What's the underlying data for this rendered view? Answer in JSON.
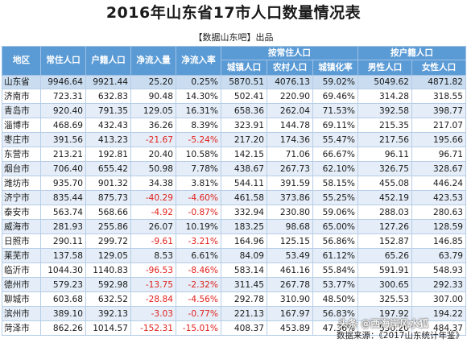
{
  "title": "2016年山东省17市人口数量情况表",
  "subtitle": "【数据山东吧】出品",
  "headers": {
    "region": "地区",
    "resident": "常住人口",
    "household": "户籍人口",
    "net_inflow": "净流入量",
    "net_inflow_rate": "净流入率",
    "group_resident": "按常住人口",
    "urban": "城镇人口",
    "rural": "农村人口",
    "urbanization": "城镇化率",
    "group_household": "按户籍人口",
    "male": "男性人口",
    "female": "女性人口"
  },
  "province_row": {
    "name": "山东省",
    "resident": "9946.64",
    "household": "9921.44",
    "net_inflow": "25.20",
    "net_inflow_rate": "0.25%",
    "urban": "5870.51",
    "rural": "4076.13",
    "urbanization": "59.02%",
    "male": "5049.62",
    "female": "4871.82"
  },
  "rows": [
    {
      "name": "济南市",
      "resident": "723.31",
      "household": "632.83",
      "net_inflow": "90.48",
      "net_inflow_rate": "14.30%",
      "urban": "502.41",
      "rural": "220.90",
      "urbanization": "69.46%",
      "male": "314.28",
      "female": "318.55"
    },
    {
      "name": "青岛市",
      "resident": "920.40",
      "household": "791.35",
      "net_inflow": "129.05",
      "net_inflow_rate": "16.31%",
      "urban": "658.36",
      "rural": "262.04",
      "urbanization": "71.53%",
      "male": "392.58",
      "female": "398.77"
    },
    {
      "name": "淄博市",
      "resident": "468.69",
      "household": "432.43",
      "net_inflow": "36.26",
      "net_inflow_rate": "8.39%",
      "urban": "323.91",
      "rural": "144.78",
      "urbanization": "69.11%",
      "male": "215.35",
      "female": "217.07"
    },
    {
      "name": "枣庄市",
      "resident": "391.56",
      "household": "413.23",
      "net_inflow": "-21.67",
      "net_inflow_rate": "-5.24%",
      "urban": "217.20",
      "rural": "174.36",
      "urbanization": "55.47%",
      "male": "217.56",
      "female": "195.66"
    },
    {
      "name": "东营市",
      "resident": "213.21",
      "household": "192.81",
      "net_inflow": "20.40",
      "net_inflow_rate": "10.58%",
      "urban": "142.15",
      "rural": "71.06",
      "urbanization": "66.67%",
      "male": "96.11",
      "female": "96.71"
    },
    {
      "name": "烟台市",
      "resident": "706.40",
      "household": "655.42",
      "net_inflow": "50.98",
      "net_inflow_rate": "7.78%",
      "urban": "438.67",
      "rural": "267.73",
      "urbanization": "62.10%",
      "male": "326.75",
      "female": "328.67"
    },
    {
      "name": "潍坊市",
      "resident": "935.70",
      "household": "901.32",
      "net_inflow": "34.38",
      "net_inflow_rate": "3.81%",
      "urban": "544.11",
      "rural": "391.59",
      "urbanization": "58.15%",
      "male": "455.08",
      "female": "446.24"
    },
    {
      "name": "济宁市",
      "resident": "835.44",
      "household": "875.73",
      "net_inflow": "-40.29",
      "net_inflow_rate": "-4.60%",
      "urban": "461.58",
      "rural": "373.86",
      "urbanization": "55.25%",
      "male": "452.19",
      "female": "423.53"
    },
    {
      "name": "泰安市",
      "resident": "563.74",
      "household": "568.66",
      "net_inflow": "-4.92",
      "net_inflow_rate": "-0.87%",
      "urban": "332.94",
      "rural": "230.80",
      "urbanization": "59.06%",
      "male": "288.03",
      "female": "280.63"
    },
    {
      "name": "威海市",
      "resident": "281.93",
      "household": "255.86",
      "net_inflow": "26.07",
      "net_inflow_rate": "10.19%",
      "urban": "183.25",
      "rural": "98.68",
      "urbanization": "65.00%",
      "male": "127.26",
      "female": "128.59"
    },
    {
      "name": "日照市",
      "resident": "290.11",
      "household": "299.72",
      "net_inflow": "-9.61",
      "net_inflow_rate": "-3.21%",
      "urban": "164.96",
      "rural": "125.15",
      "urbanization": "56.86%",
      "male": "152.87",
      "female": "146.85"
    },
    {
      "name": "莱芜市",
      "resident": "137.58",
      "household": "129.05",
      "net_inflow": "8.53",
      "net_inflow_rate": "6.61%",
      "urban": "84.09",
      "rural": "53.49",
      "urbanization": "61.12%",
      "male": "65.26",
      "female": "63.79"
    },
    {
      "name": "临沂市",
      "resident": "1044.30",
      "household": "1140.83",
      "net_inflow": "-96.53",
      "net_inflow_rate": "-8.46%",
      "urban": "583.14",
      "rural": "461.16",
      "urbanization": "55.84%",
      "male": "591.91",
      "female": "548.93"
    },
    {
      "name": "德州市",
      "resident": "579.23",
      "household": "592.98",
      "net_inflow": "-13.75",
      "net_inflow_rate": "-2.32%",
      "urban": "311.45",
      "rural": "267.78",
      "urbanization": "53.77%",
      "male": "300.65",
      "female": "292.33"
    },
    {
      "name": "聊城市",
      "resident": "603.68",
      "household": "632.52",
      "net_inflow": "-28.84",
      "net_inflow_rate": "-4.56%",
      "urban": "292.78",
      "rural": "310.90",
      "urbanization": "48.50%",
      "male": "325.53",
      "female": "307.00"
    },
    {
      "name": "滨州市",
      "resident": "389.10",
      "household": "392.13",
      "net_inflow": "-3.03",
      "net_inflow_rate": "-0.77%",
      "urban": "221.13",
      "rural": "167.97",
      "urbanization": "56.83%",
      "male": "197.92",
      "female": "194.22"
    },
    {
      "name": "菏泽市",
      "resident": "862.26",
      "household": "1014.57",
      "net_inflow": "-152.31",
      "net_inflow_rate": "-15.01%",
      "urban": "408.37",
      "rural": "453.89",
      "urbanization": "47.36%",
      "male": "530.20",
      "female": "484.37"
    }
  ],
  "footer": "数据来源：《2017山东统计年鉴》",
  "watermark": "头条 @西海岸风水狐",
  "colors": {
    "header_bg": "#5b9bd5",
    "negative": "#e0211d",
    "stripe": "#e5eef8",
    "sum_bg": "#c9dcf0"
  }
}
